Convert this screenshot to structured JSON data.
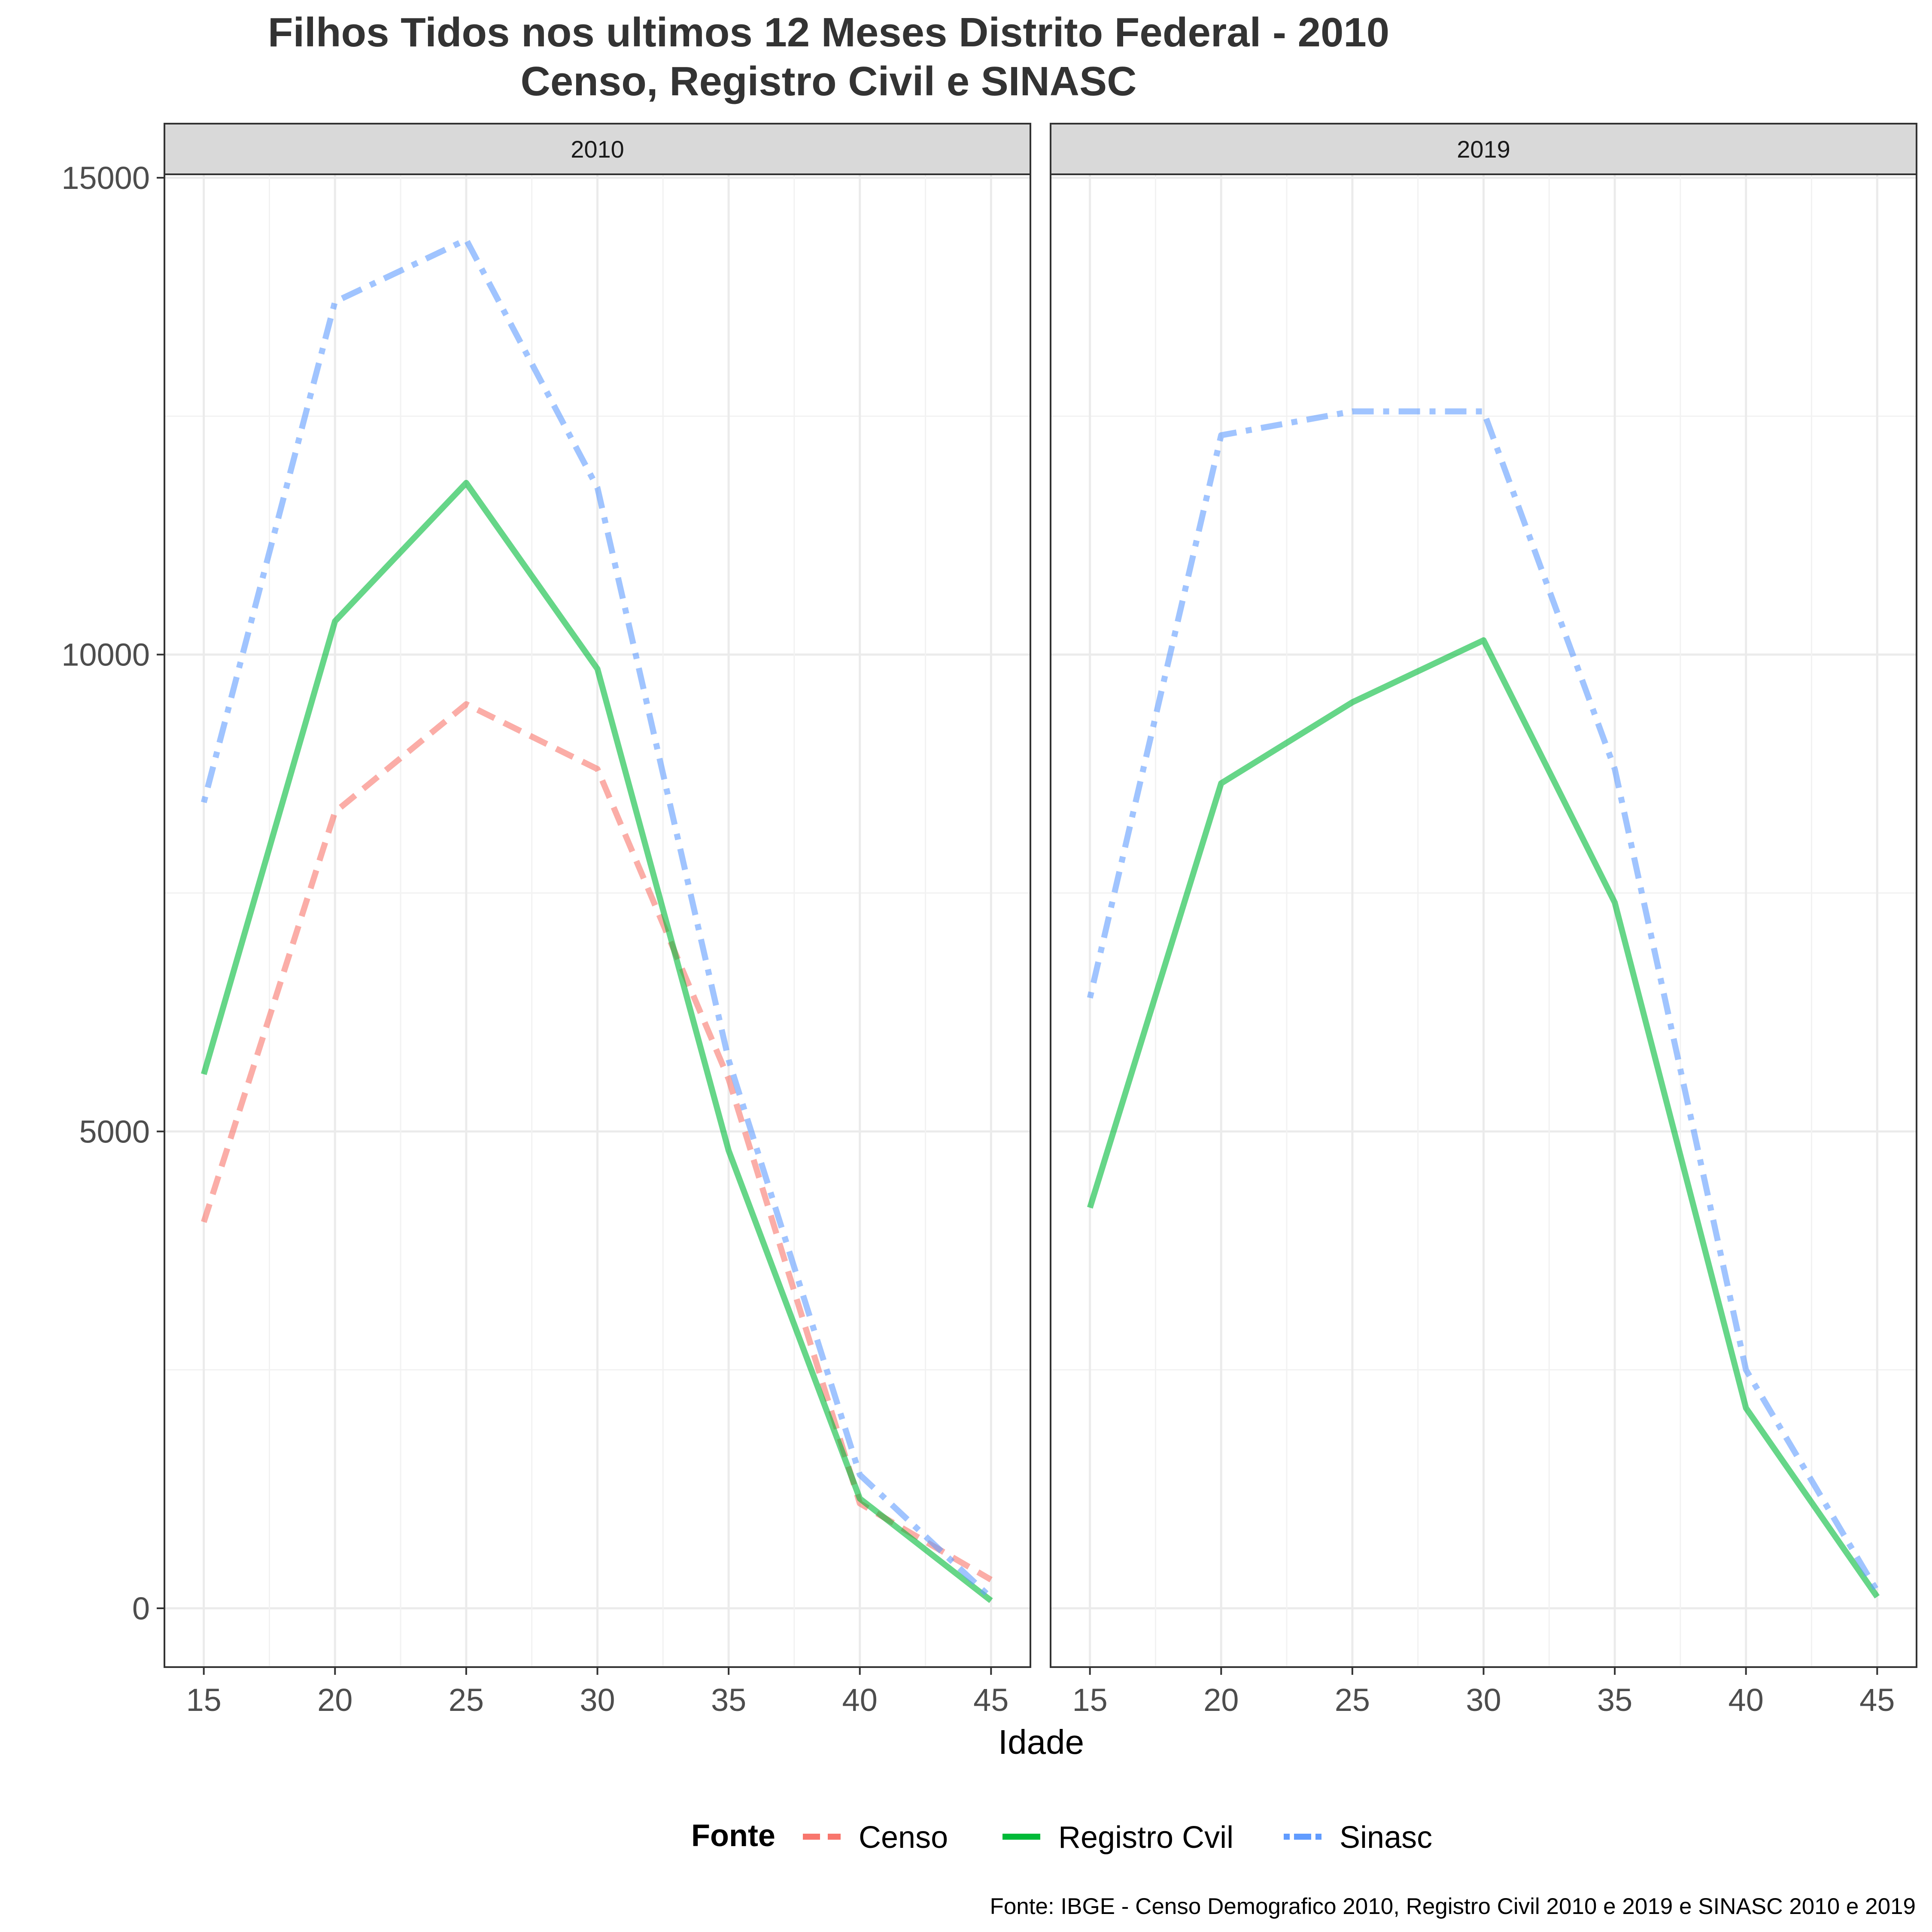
{
  "chart_data": {
    "type": "line",
    "title": "Filhos Tidos nos ultimos 12 Meses Distrito Federal - 2010",
    "subtitle": "Censo, Registro Civil e SINASC",
    "xlabel": "Idade",
    "ylabel": "",
    "caption": "Fonte: IBGE - Censo Demografico 2010, Registro Civil 2010 e 2019 e SINASC 2010 e 2019",
    "legend_title": "Fonte",
    "legend_position": "bottom",
    "grid": true,
    "xlim": [
      15,
      45
    ],
    "ylim": [
      -650,
      15000
    ],
    "x_ticks": [
      "15",
      "20",
      "25",
      "30",
      "35",
      "40",
      "45"
    ],
    "y_ticks": [
      "0",
      "5000",
      "10000",
      "15000"
    ],
    "x": [
      15,
      20,
      25,
      30,
      35,
      40,
      45
    ],
    "series_styles": [
      {
        "name": "Censo",
        "color": "#F8766D",
        "dash": "dashed"
      },
      {
        "name": "Registro Cvil",
        "color": "#00BA38",
        "dash": "solid"
      },
      {
        "name": "Sinasc",
        "color": "#619CFF",
        "dash": "dotdash"
      }
    ],
    "panels": [
      {
        "label": "2010",
        "series": [
          {
            "name": "Censo",
            "values": [
              4050,
              8350,
              9480,
              8800,
              5550,
              1100,
              300
            ]
          },
          {
            "name": "Registro Cvil",
            "values": [
              5600,
              10350,
              11800,
              9850,
              4800,
              1150,
              80
            ]
          },
          {
            "name": "Sinasc",
            "values": [
              8450,
              13700,
              14350,
              11750,
              5750,
              1400,
              110
            ]
          }
        ]
      },
      {
        "label": "2019",
        "series": [
          {
            "name": "Registro Cvil",
            "values": [
              4200,
              8650,
              9500,
              10150,
              7400,
              2100,
              120
            ]
          },
          {
            "name": "Sinasc",
            "values": [
              6400,
              12300,
              12550,
              12550,
              8800,
              2500,
              180
            ]
          }
        ]
      }
    ]
  }
}
